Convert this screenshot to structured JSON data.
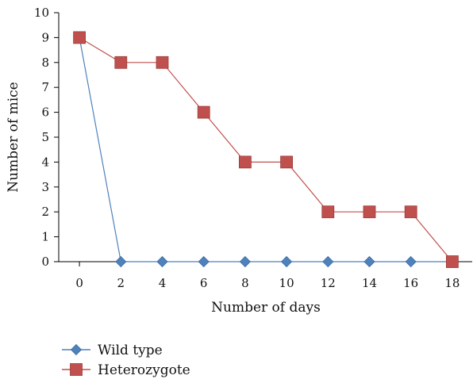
{
  "chart_data": {
    "type": "line",
    "title": "",
    "xlabel": "Number of days",
    "ylabel": "Number of mice",
    "x": [
      0,
      2,
      4,
      6,
      8,
      10,
      12,
      14,
      16,
      18
    ],
    "xlim": [
      -1,
      19
    ],
    "ylim": [
      0,
      10
    ],
    "x_ticks": [
      "0",
      "2",
      "4",
      "6",
      "8",
      "10",
      "12",
      "14",
      "16",
      "18"
    ],
    "y_ticks": [
      "0",
      "1",
      "2",
      "3",
      "4",
      "5",
      "6",
      "7",
      "8",
      "9",
      "10"
    ],
    "grid": false,
    "legend_position": "bottom-left",
    "series": [
      {
        "name": "Wild type",
        "marker": "diamond",
        "color": "#4f81bd",
        "x": [
          0,
          2,
          4,
          6,
          8,
          10,
          12,
          14,
          16,
          18
        ],
        "values": [
          9,
          0,
          0,
          0,
          0,
          0,
          0,
          0,
          0,
          0
        ]
      },
      {
        "name": "Heterozygote",
        "marker": "square",
        "color": "#c0504d",
        "x": [
          0,
          2,
          4,
          6,
          8,
          10,
          12,
          14,
          16,
          18
        ],
        "values": [
          9,
          8,
          8,
          6,
          4,
          4,
          2,
          2,
          2,
          0
        ]
      }
    ]
  }
}
